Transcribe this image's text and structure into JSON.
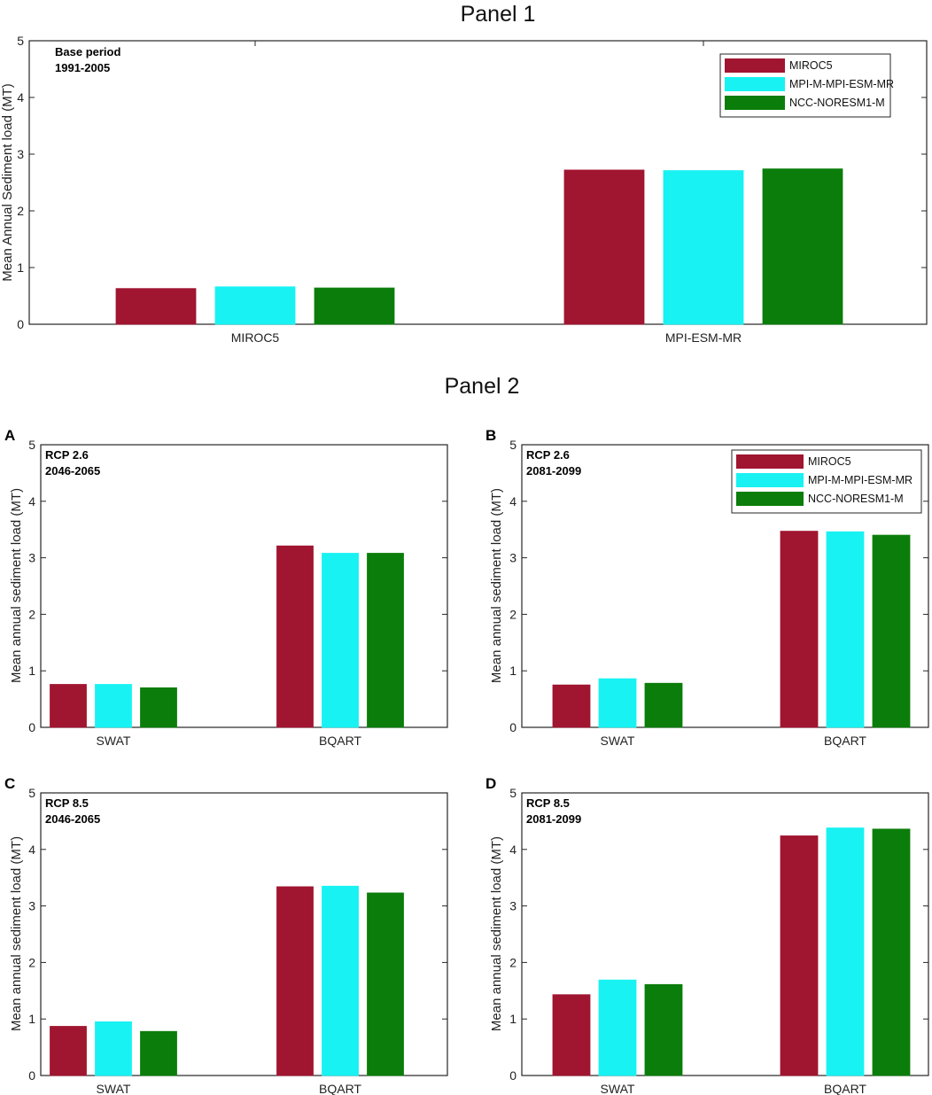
{
  "panel_titles": [
    "Panel 1",
    "Panel 2"
  ],
  "colors": {
    "MIROC5": "#a01530",
    "MPI-M-MPI-ESM-MR": "#18f2f2",
    "NCC-NORESM1-M": "#0a7d0a"
  },
  "chart_data": [
    {
      "id": "p1",
      "type": "bar",
      "panel_label": "",
      "categories": [
        "MIROC5",
        "MPI-ESM-MR"
      ],
      "series": [
        {
          "name": "MIROC5",
          "values": [
            0.63,
            2.72
          ]
        },
        {
          "name": "MPI-M-MPI-ESM-MR",
          "values": [
            0.66,
            2.71
          ]
        },
        {
          "name": "NCC-NORESM1-M",
          "values": [
            0.64,
            2.74
          ]
        }
      ],
      "annotation": [
        "Base period",
        "1991-2005"
      ],
      "ylabel": "Mean Annual Sediment load (MT)",
      "ylim": [
        0,
        5
      ],
      "yticks": [
        "0",
        "1",
        "2",
        "3",
        "4",
        "5"
      ],
      "legend": "top-right"
    },
    {
      "id": "A",
      "type": "bar",
      "panel_label": "A",
      "categories": [
        "SWAT",
        "BQART"
      ],
      "series": [
        {
          "name": "MIROC5",
          "values": [
            0.76,
            3.21
          ]
        },
        {
          "name": "MPI-M-MPI-ESM-MR",
          "values": [
            0.76,
            3.08
          ]
        },
        {
          "name": "NCC-NORESM1-M",
          "values": [
            0.7,
            3.08
          ]
        }
      ],
      "annotation": [
        "RCP 2.6",
        "2046-2065"
      ],
      "ylabel": "Mean annual sediment load (MT)",
      "ylim": [
        0,
        5
      ],
      "yticks": [
        "0",
        "1",
        "2",
        "3",
        "4",
        "5"
      ],
      "legend": "none"
    },
    {
      "id": "B",
      "type": "bar",
      "panel_label": "B",
      "categories": [
        "SWAT",
        "BQART"
      ],
      "series": [
        {
          "name": "MIROC5",
          "values": [
            0.75,
            3.47
          ]
        },
        {
          "name": "MPI-M-MPI-ESM-MR",
          "values": [
            0.86,
            3.46
          ]
        },
        {
          "name": "NCC-NORESM1-M",
          "values": [
            0.78,
            3.4
          ]
        }
      ],
      "annotation": [
        "RCP 2.6",
        "2081-2099"
      ],
      "ylabel": "Mean annual sediment load (MT)",
      "ylim": [
        0,
        5
      ],
      "yticks": [
        "0",
        "1",
        "2",
        "3",
        "4",
        "5"
      ],
      "legend": "top-right"
    },
    {
      "id": "C",
      "type": "bar",
      "panel_label": "C",
      "categories": [
        "SWAT",
        "BQART"
      ],
      "series": [
        {
          "name": "MIROC5",
          "values": [
            0.87,
            3.34
          ]
        },
        {
          "name": "MPI-M-MPI-ESM-MR",
          "values": [
            0.95,
            3.35
          ]
        },
        {
          "name": "NCC-NORESM1-M",
          "values": [
            0.78,
            3.23
          ]
        }
      ],
      "annotation": [
        "RCP 8.5",
        "2046-2065"
      ],
      "ylabel": "Mean annual sediment load (MT)",
      "ylim": [
        0,
        5
      ],
      "yticks": [
        "0",
        "1",
        "2",
        "3",
        "4",
        "5"
      ],
      "legend": "none"
    },
    {
      "id": "D",
      "type": "bar",
      "panel_label": "D",
      "categories": [
        "SWAT",
        "BQART"
      ],
      "series": [
        {
          "name": "MIROC5",
          "values": [
            1.43,
            4.24
          ]
        },
        {
          "name": "MPI-M-MPI-ESM-MR",
          "values": [
            1.69,
            4.38
          ]
        },
        {
          "name": "NCC-NORESM1-M",
          "values": [
            1.61,
            4.36
          ]
        }
      ],
      "annotation": [
        "RCP 8.5",
        "2081-2099"
      ],
      "ylabel": "Mean annual sediment load (MT)",
      "ylim": [
        0,
        5
      ],
      "yticks": [
        "0",
        "1",
        "2",
        "3",
        "4",
        "5"
      ],
      "legend": "none"
    }
  ]
}
